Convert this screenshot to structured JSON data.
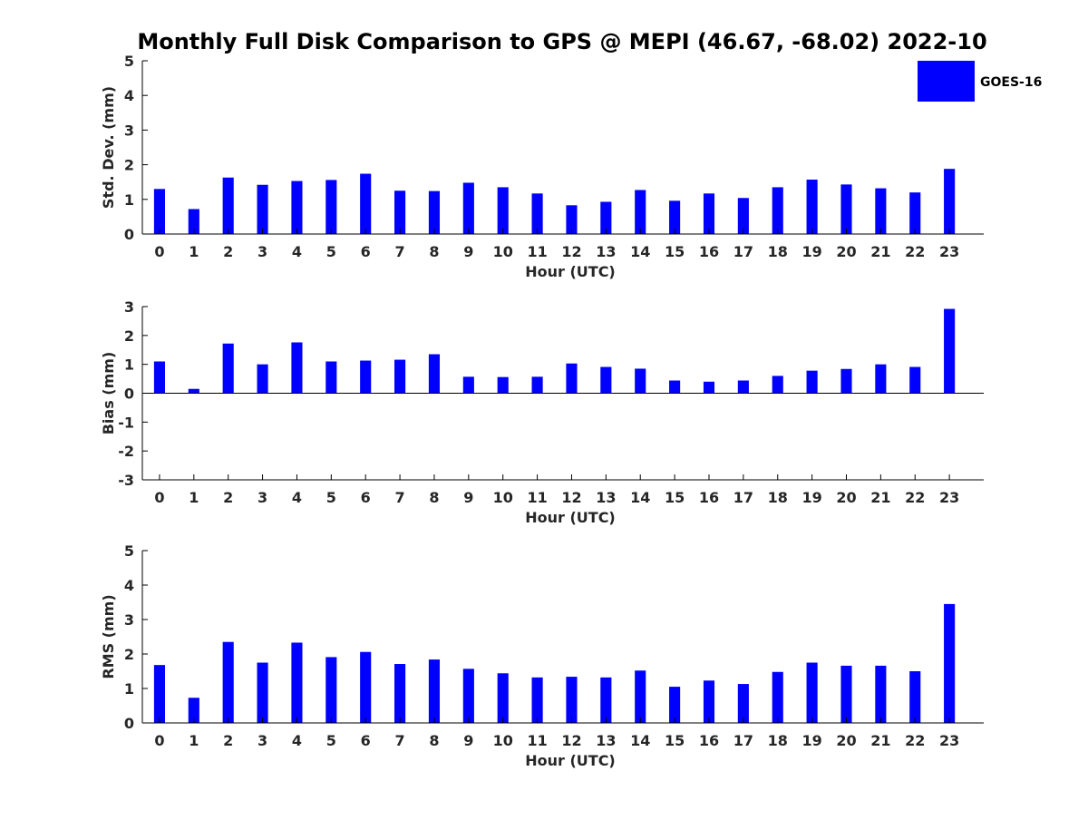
{
  "figure": {
    "title": "Monthly Full Disk Comparison to GPS @ MEPI (46.67, -68.02) 2022-10",
    "legend": {
      "label": "GOES-16",
      "color": "#0000ff",
      "position": "top-right"
    }
  },
  "chart_data": [
    {
      "type": "bar",
      "ylabel": "Std. Dev. (mm)",
      "xlabel": "Hour (UTC)",
      "ylim": [
        0,
        5
      ],
      "yticks": [
        0,
        1,
        2,
        3,
        4,
        5
      ],
      "categories": [
        "0",
        "1",
        "2",
        "3",
        "4",
        "5",
        "6",
        "7",
        "8",
        "9",
        "10",
        "11",
        "12",
        "13",
        "14",
        "15",
        "16",
        "17",
        "18",
        "19",
        "20",
        "21",
        "22",
        "23"
      ],
      "series": [
        {
          "name": "GOES-16",
          "color": "#0000ff",
          "values": [
            1.3,
            0.72,
            1.63,
            1.42,
            1.53,
            1.56,
            1.74,
            1.25,
            1.24,
            1.48,
            1.35,
            1.17,
            0.83,
            0.93,
            1.27,
            0.96,
            1.17,
            1.04,
            1.35,
            1.57,
            1.43,
            1.32,
            1.2,
            1.88
          ]
        }
      ],
      "grid": false
    },
    {
      "type": "bar",
      "ylabel": "Bias (mm)",
      "xlabel": "Hour (UTC)",
      "ylim": [
        -3,
        3
      ],
      "yticks": [
        -3,
        -2,
        -1,
        0,
        1,
        2,
        3
      ],
      "categories": [
        "0",
        "1",
        "2",
        "3",
        "4",
        "5",
        "6",
        "7",
        "8",
        "9",
        "10",
        "11",
        "12",
        "13",
        "14",
        "15",
        "16",
        "17",
        "18",
        "19",
        "20",
        "21",
        "22",
        "23"
      ],
      "series": [
        {
          "name": "GOES-16",
          "color": "#0000ff",
          "values": [
            1.1,
            0.15,
            1.72,
            1.0,
            1.76,
            1.1,
            1.13,
            1.16,
            1.35,
            0.57,
            0.56,
            0.57,
            1.03,
            0.91,
            0.85,
            0.44,
            0.4,
            0.44,
            0.6,
            0.78,
            0.84,
            1.0,
            0.91,
            2.92
          ]
        }
      ],
      "grid": false
    },
    {
      "type": "bar",
      "ylabel": "RMS (mm)",
      "xlabel": "Hour (UTC)",
      "ylim": [
        0,
        5
      ],
      "yticks": [
        0,
        1,
        2,
        3,
        4,
        5
      ],
      "categories": [
        "0",
        "1",
        "2",
        "3",
        "4",
        "5",
        "6",
        "7",
        "8",
        "9",
        "10",
        "11",
        "12",
        "13",
        "14",
        "15",
        "16",
        "17",
        "18",
        "19",
        "20",
        "21",
        "22",
        "23"
      ],
      "series": [
        {
          "name": "GOES-16",
          "color": "#0000ff",
          "values": [
            1.68,
            0.73,
            2.35,
            1.75,
            2.33,
            1.91,
            2.06,
            1.71,
            1.84,
            1.57,
            1.44,
            1.32,
            1.34,
            1.32,
            1.52,
            1.05,
            1.23,
            1.13,
            1.48,
            1.75,
            1.66,
            1.66,
            1.5,
            3.45
          ]
        }
      ],
      "grid": false
    }
  ]
}
